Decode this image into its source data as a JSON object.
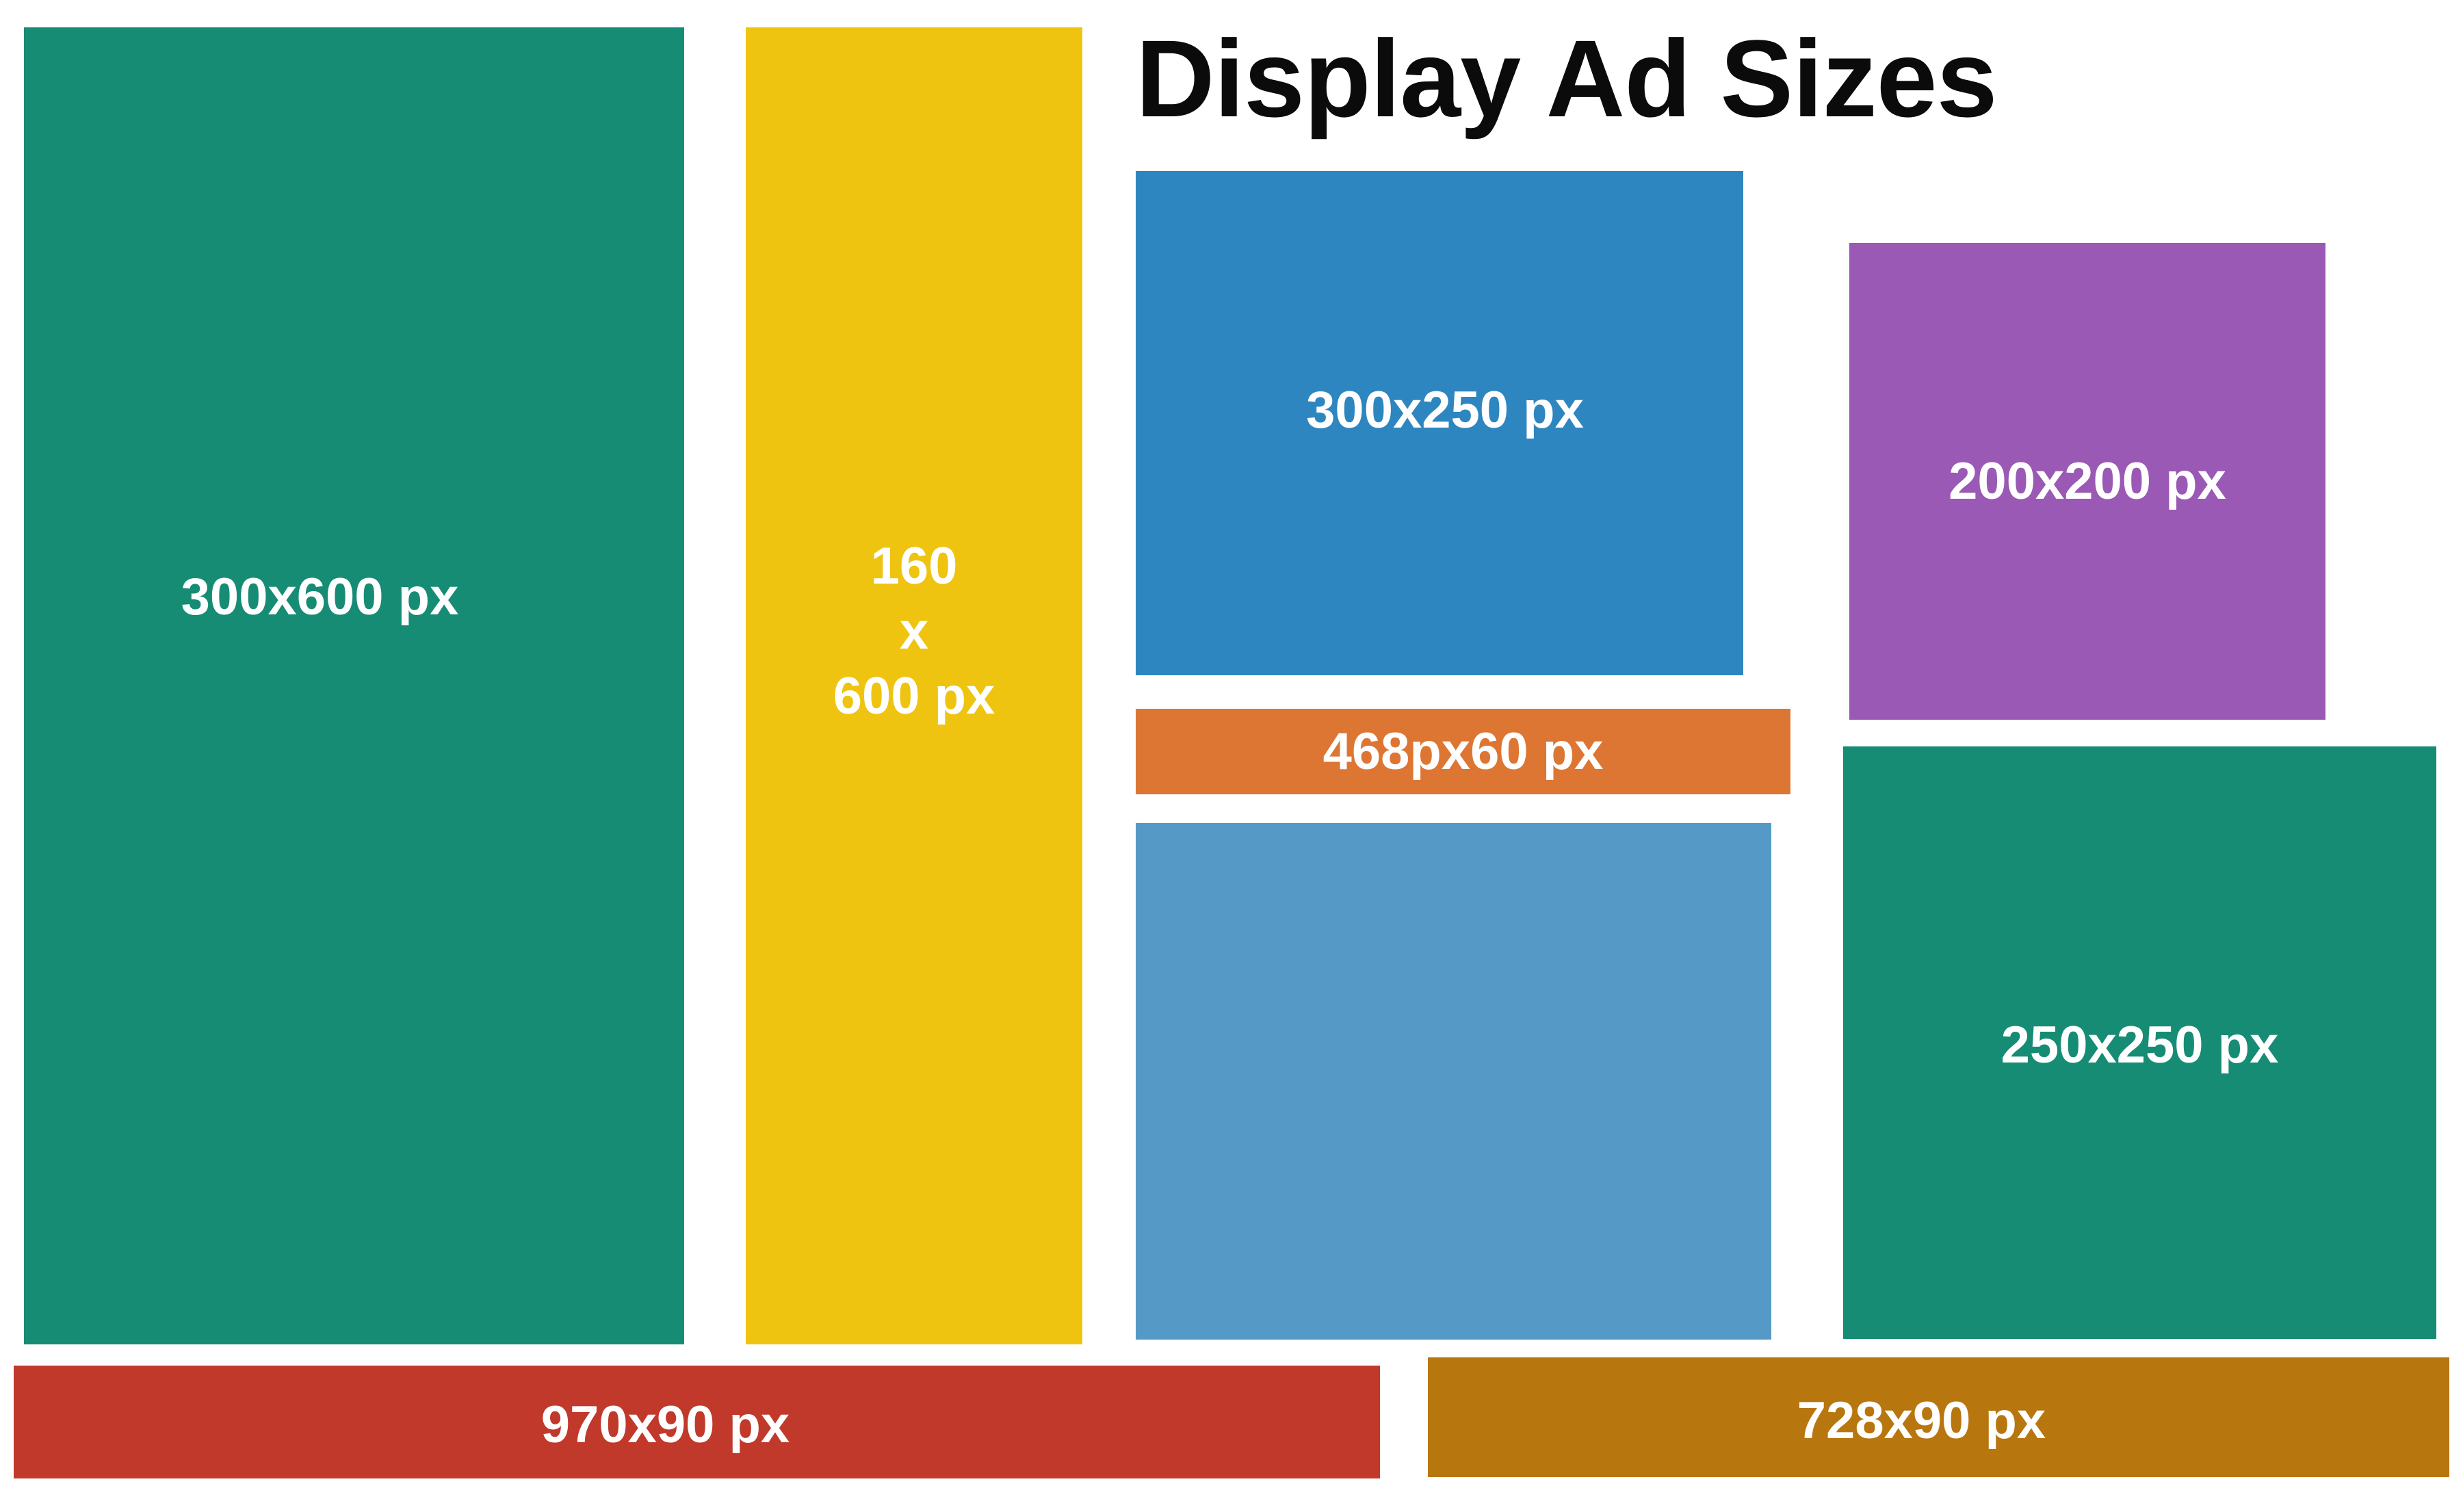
{
  "title": "Display Ad Sizes",
  "ads": [
    {
      "id": "300x600",
      "label": "300x600 px",
      "color": "#168c75"
    },
    {
      "id": "160x600",
      "label_lines": [
        "160",
        "x",
        "600 px"
      ],
      "color": "#efc410"
    },
    {
      "id": "300x250a",
      "label": "300x250 px",
      "color": "#2e86c0"
    },
    {
      "id": "200x200",
      "label": "200x200 px",
      "color": "#9a59b4"
    },
    {
      "id": "468x60",
      "label": "468px60 px",
      "color": "#dd7632"
    },
    {
      "id": "300x250b",
      "label": "",
      "color": "#5599c7"
    },
    {
      "id": "250x250",
      "label": "250x250 px",
      "color": "#168c75"
    },
    {
      "id": "970x90",
      "label": "970x90 px",
      "color": "#c0392b"
    },
    {
      "id": "728x90",
      "label": "728x90 px",
      "color": "#b8760e"
    }
  ]
}
